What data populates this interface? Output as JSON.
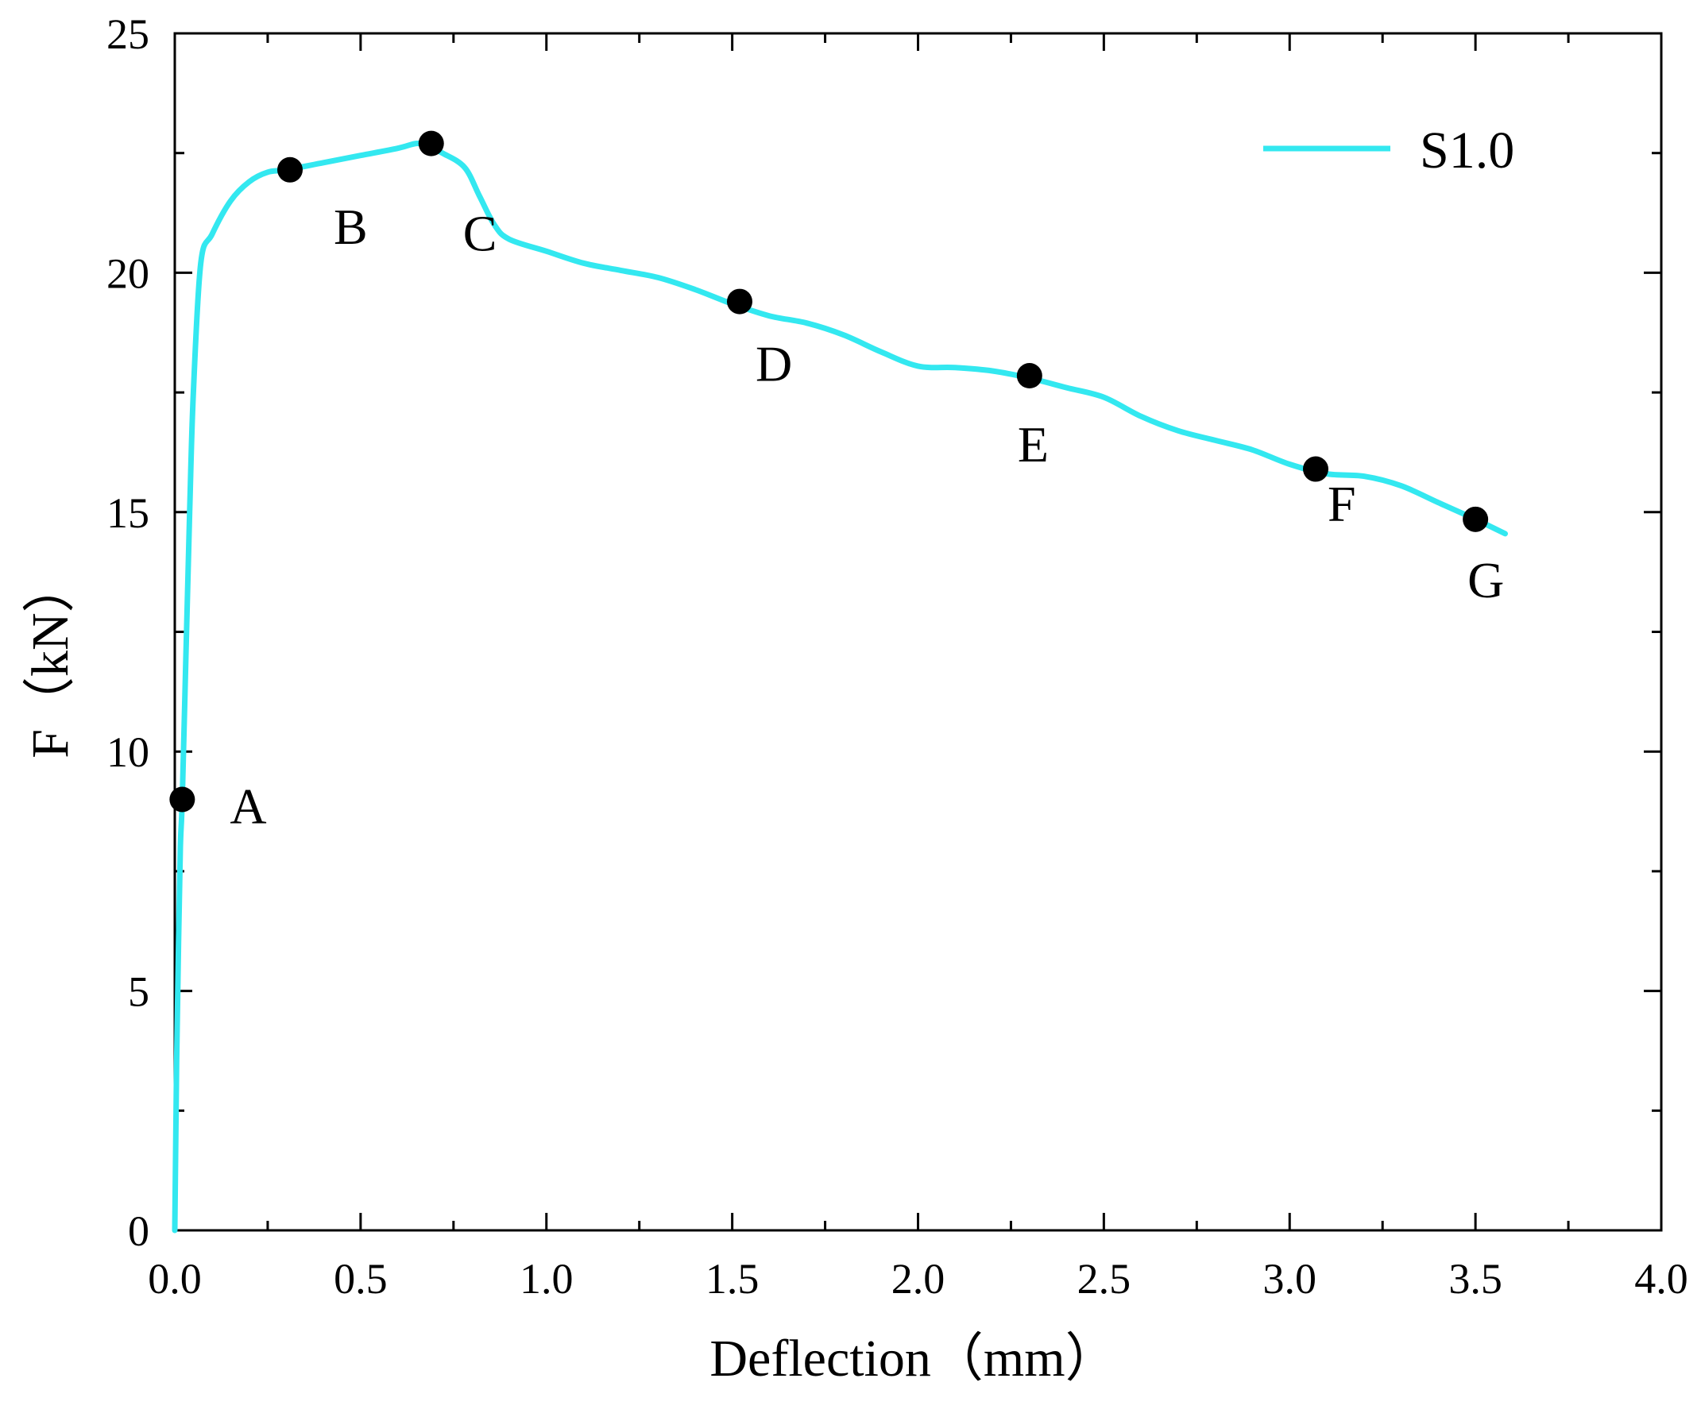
{
  "chart_data": {
    "type": "line",
    "title": "",
    "xlabel": "Deflection（mm）",
    "ylabel": "F（kN）",
    "xlim": [
      0,
      4.0
    ],
    "ylim": [
      0,
      25
    ],
    "x_ticks": [
      0.0,
      0.5,
      1.0,
      1.5,
      2.0,
      2.5,
      3.0,
      3.5,
      4.0
    ],
    "x_tick_labels": [
      "0.0",
      "0.5",
      "1.0",
      "1.5",
      "2.0",
      "2.5",
      "3.0",
      "3.5",
      "4.0"
    ],
    "y_ticks": [
      0,
      5,
      10,
      15,
      20,
      25
    ],
    "y_tick_labels": [
      "0",
      "5",
      "10",
      "15",
      "20",
      "25"
    ],
    "grid": false,
    "legend_position": "top-right",
    "colors": {
      "series": "#33E8F0",
      "markers": "#000000",
      "axes": "#000000"
    },
    "series": [
      {
        "name": "S1.0",
        "x": [
          0.0,
          0.005,
          0.01,
          0.015,
          0.02,
          0.03,
          0.04,
          0.05,
          0.07,
          0.1,
          0.15,
          0.2,
          0.25,
          0.3,
          0.4,
          0.5,
          0.6,
          0.65,
          0.68,
          0.72,
          0.78,
          0.82,
          0.86,
          0.9,
          1.0,
          1.1,
          1.2,
          1.3,
          1.4,
          1.5,
          1.6,
          1.7,
          1.8,
          1.9,
          2.0,
          2.1,
          2.2,
          2.3,
          2.4,
          2.5,
          2.6,
          2.7,
          2.8,
          2.9,
          3.0,
          3.1,
          3.2,
          3.3,
          3.4,
          3.5,
          3.58
        ],
        "y": [
          0.0,
          3.5,
          6.0,
          8.0,
          9.0,
          12.0,
          15.0,
          17.5,
          20.2,
          20.8,
          21.5,
          21.9,
          22.1,
          22.15,
          22.3,
          22.45,
          22.6,
          22.7,
          22.65,
          22.5,
          22.2,
          21.6,
          21.0,
          20.7,
          20.45,
          20.2,
          20.05,
          19.9,
          19.65,
          19.35,
          19.1,
          18.95,
          18.7,
          18.35,
          18.05,
          18.02,
          17.95,
          17.8,
          17.6,
          17.4,
          17.0,
          16.7,
          16.5,
          16.3,
          16.0,
          15.8,
          15.75,
          15.55,
          15.2,
          14.85,
          14.55
        ]
      }
    ],
    "points": [
      {
        "label": "A",
        "x": 0.02,
        "y": 9.0
      },
      {
        "label": "B",
        "x": 0.31,
        "y": 22.15
      },
      {
        "label": "C",
        "x": 0.69,
        "y": 22.7
      },
      {
        "label": "D",
        "x": 1.52,
        "y": 19.4
      },
      {
        "label": "E",
        "x": 2.3,
        "y": 17.85
      },
      {
        "label": "F",
        "x": 3.07,
        "y": 15.9
      },
      {
        "label": "G",
        "x": 3.5,
        "y": 14.85
      }
    ]
  }
}
